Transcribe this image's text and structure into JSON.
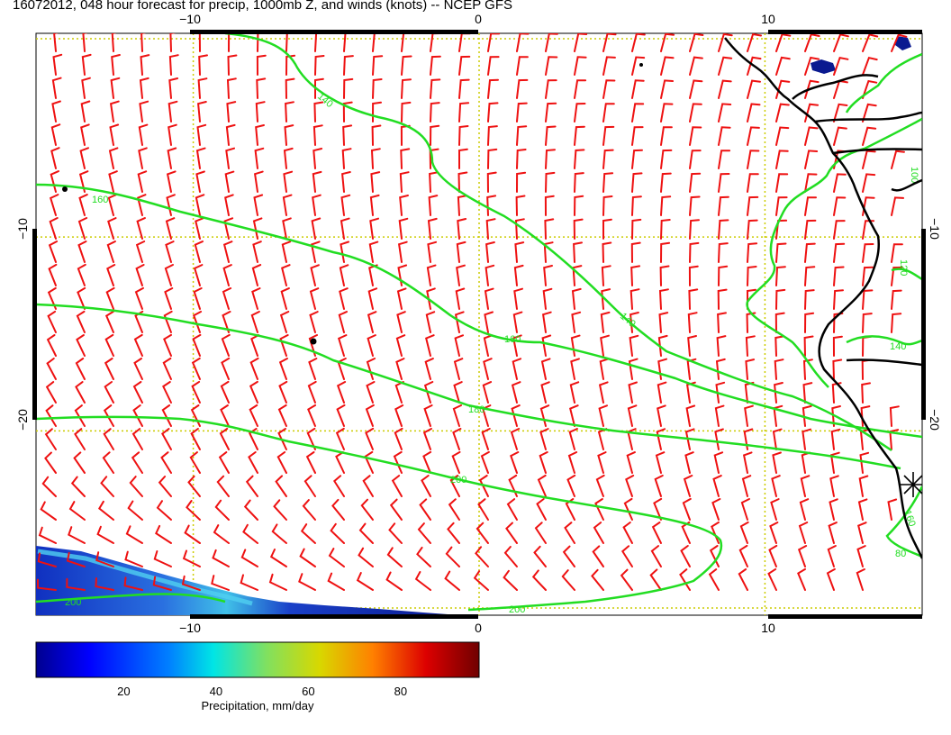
{
  "title": "16072012, 048 hour forecast for precip, 1000mb Z, and winds (knots) -- NCEP GFS",
  "map": {
    "lon_range": [
      -15.5,
      15.5
    ],
    "lat_range": [
      0.5,
      -29.5
    ],
    "grid_lons": [
      -10,
      0,
      10
    ],
    "grid_lats": [
      -10,
      -20
    ],
    "lon_tick_labels": [
      "−10",
      "0",
      "10"
    ],
    "lat_tick_labels": [
      "−10",
      "−20"
    ],
    "colors": {
      "contour": "#22dd22",
      "wind_barb": "#ee1111",
      "coastline": "#000000",
      "gridline": "#cccc00"
    },
    "contour_labels": [
      "140",
      "160",
      "160",
      "140",
      "160",
      "180",
      "200",
      "200",
      "200",
      "100",
      "120",
      "140",
      "160",
      "80"
    ]
  },
  "colorbar": {
    "label": "Precipitation, mm/day",
    "ticks": [
      "20",
      "40",
      "60",
      "80"
    ],
    "tick_values": [
      20,
      40,
      60,
      80
    ],
    "range": [
      1,
      97
    ],
    "colormap": [
      "#00008f",
      "#0000ff",
      "#0080ff",
      "#00ffff",
      "#80ff80",
      "#ffff00",
      "#ff8000",
      "#ff0000",
      "#800000"
    ]
  }
}
